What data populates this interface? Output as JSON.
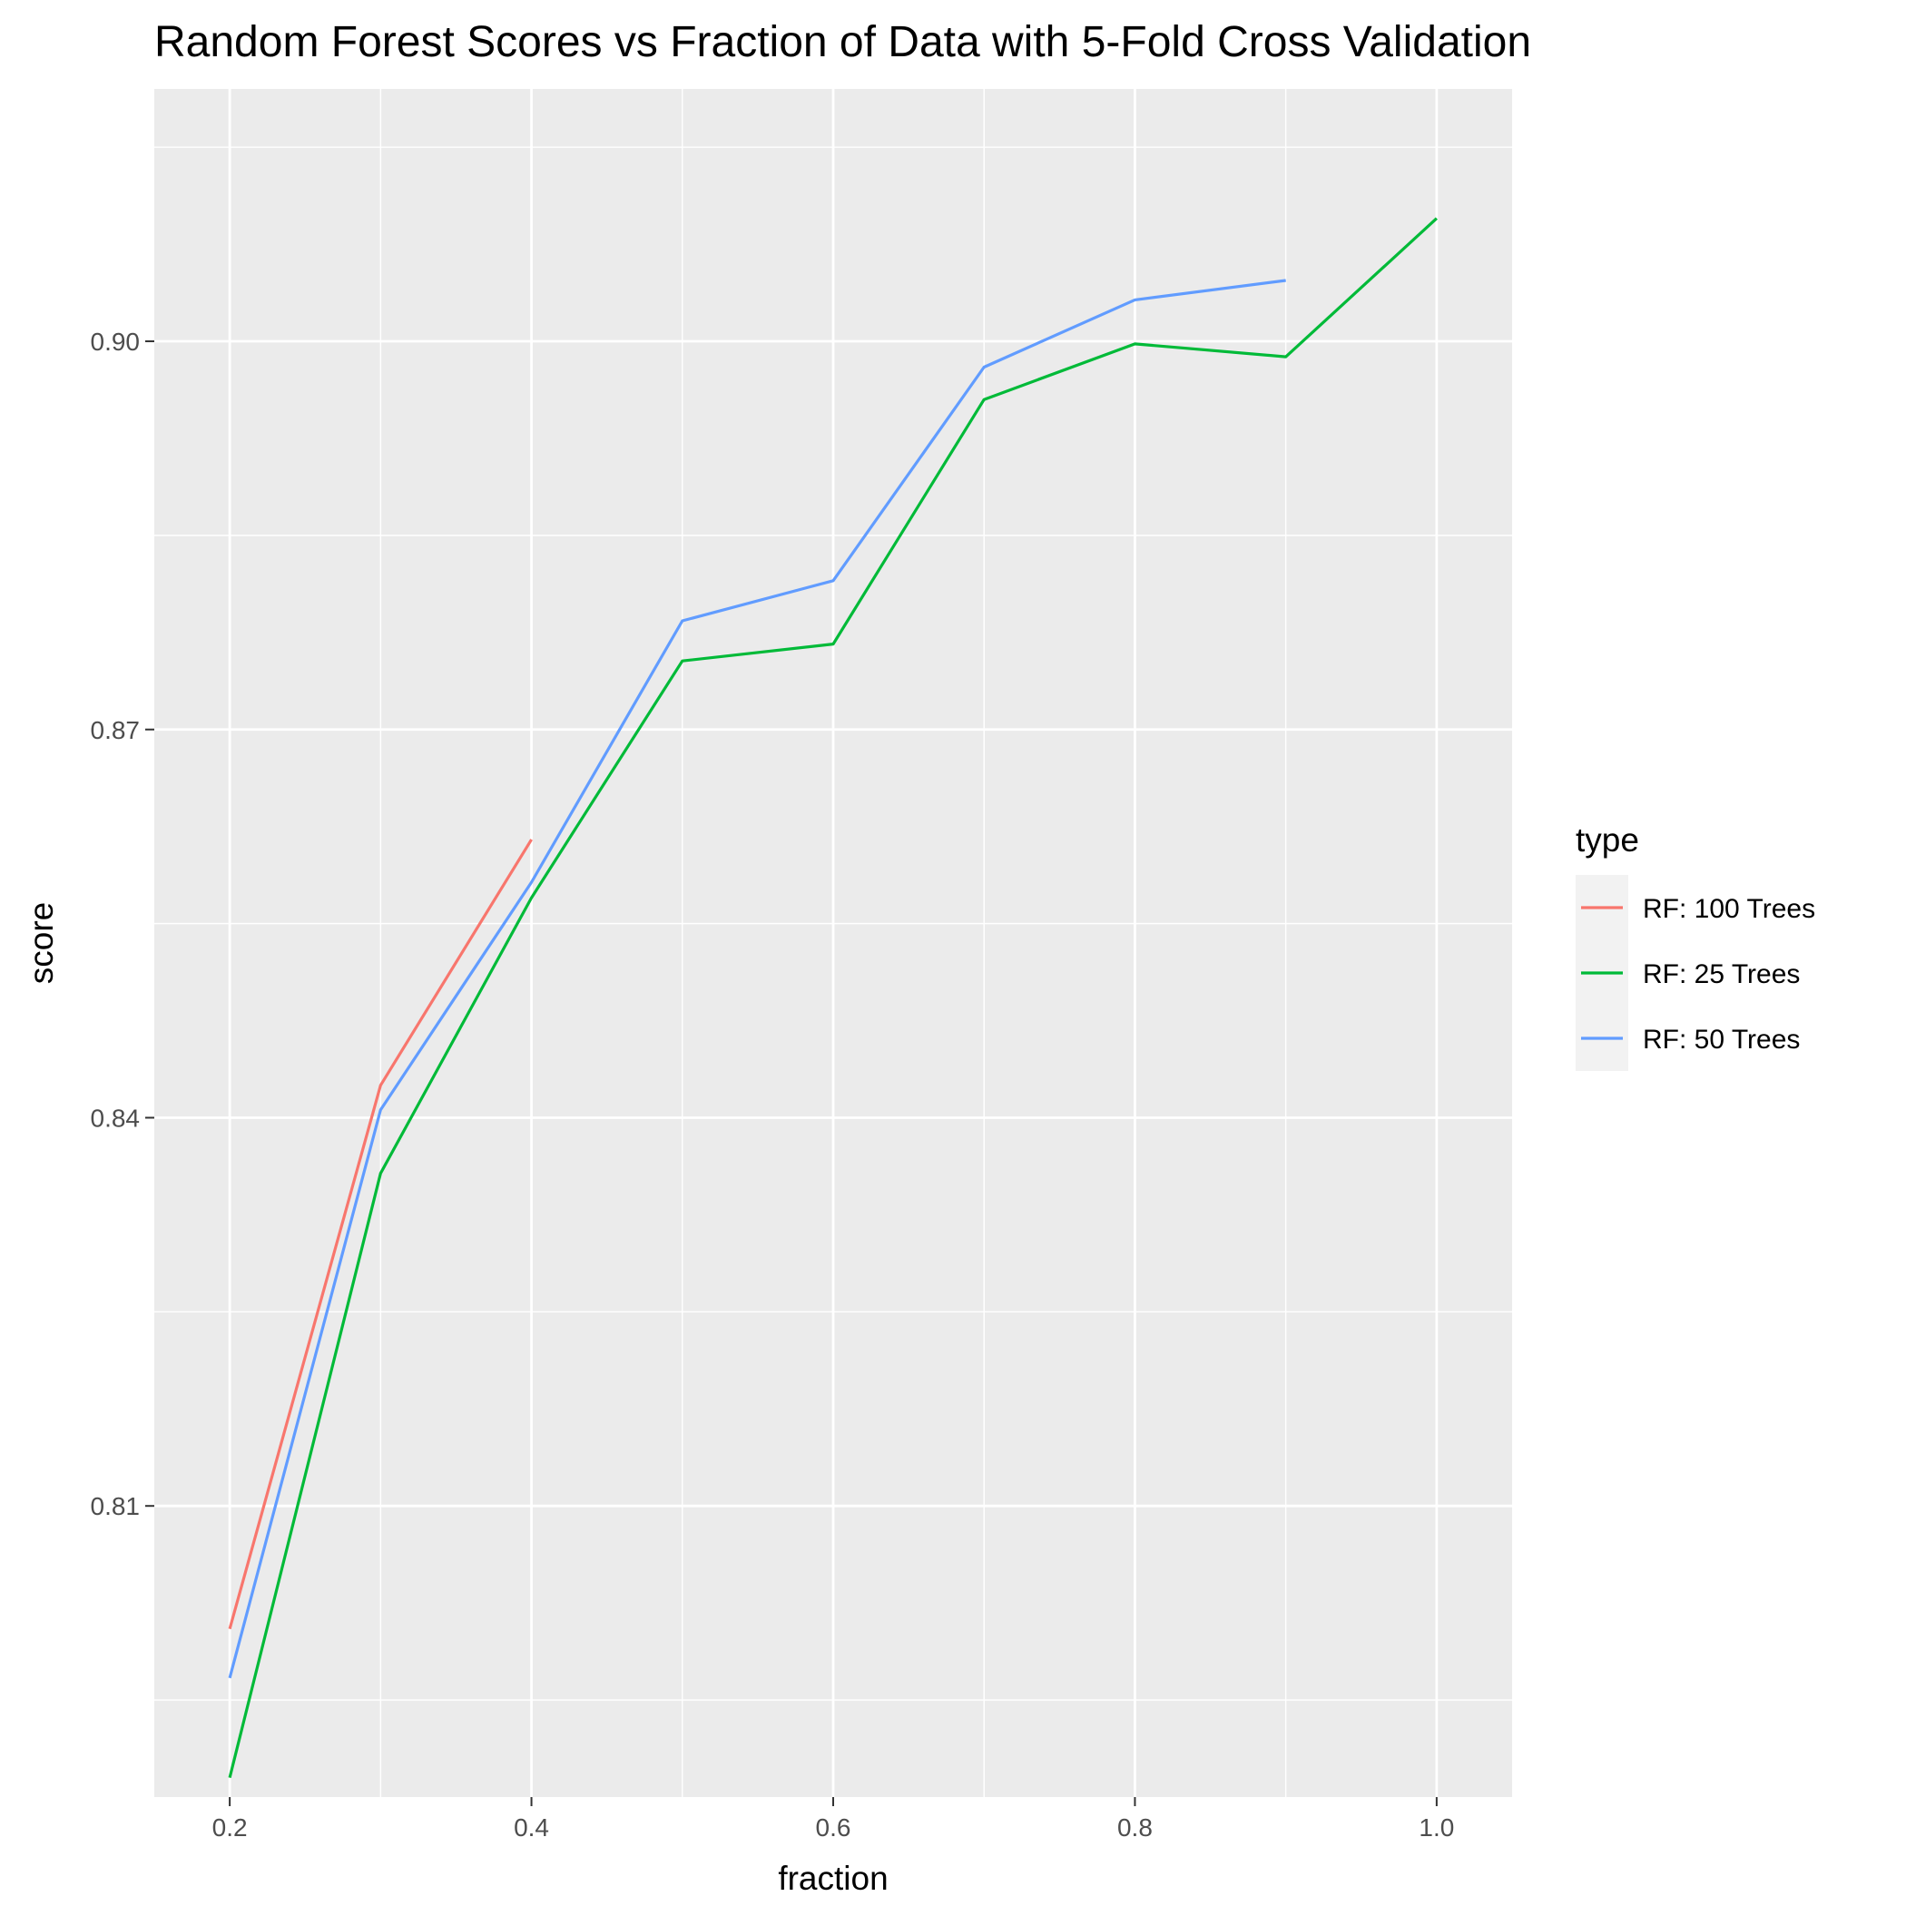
{
  "chart_data": {
    "type": "line",
    "title": "Random Forest Scores vs Fraction of Data with 5-Fold Cross Validation",
    "xlabel": "fraction",
    "ylabel": "score",
    "xlim": [
      0.15,
      1.05
    ],
    "ylim": [
      0.7875,
      0.9195
    ],
    "x_ticks": [
      0.2,
      0.4,
      0.6,
      0.8,
      1.0
    ],
    "x_tick_labels": [
      "0.2",
      "0.4",
      "0.6",
      "0.8",
      "1.0"
    ],
    "y_ticks": [
      0.81,
      0.84,
      0.87,
      0.9
    ],
    "y_tick_labels": [
      "0.81",
      "0.84",
      "0.87",
      "0.90"
    ],
    "grid": true,
    "legend": {
      "title": "type",
      "position": "right"
    },
    "series": [
      {
        "name": "RF: 100 Trees",
        "color": "#F8766D",
        "x": [
          0.2,
          0.3,
          0.4
        ],
        "y": [
          0.8005,
          0.8425,
          0.8615
        ]
      },
      {
        "name": "RF: 25 Trees",
        "color": "#00BA38",
        "x": [
          0.2,
          0.3,
          0.4,
          0.5,
          0.6,
          0.7,
          0.8,
          0.9,
          1.0
        ],
        "y": [
          0.789,
          0.8357,
          0.857,
          0.8753,
          0.8766,
          0.8955,
          0.8998,
          0.8988,
          0.9095
        ]
      },
      {
        "name": "RF: 50 Trees",
        "color": "#619CFF",
        "x": [
          0.2,
          0.3,
          0.4,
          0.5,
          0.6,
          0.7,
          0.8,
          0.9
        ],
        "y": [
          0.7967,
          0.8406,
          0.8582,
          0.8784,
          0.8815,
          0.898,
          0.9032,
          0.9047
        ]
      }
    ]
  }
}
